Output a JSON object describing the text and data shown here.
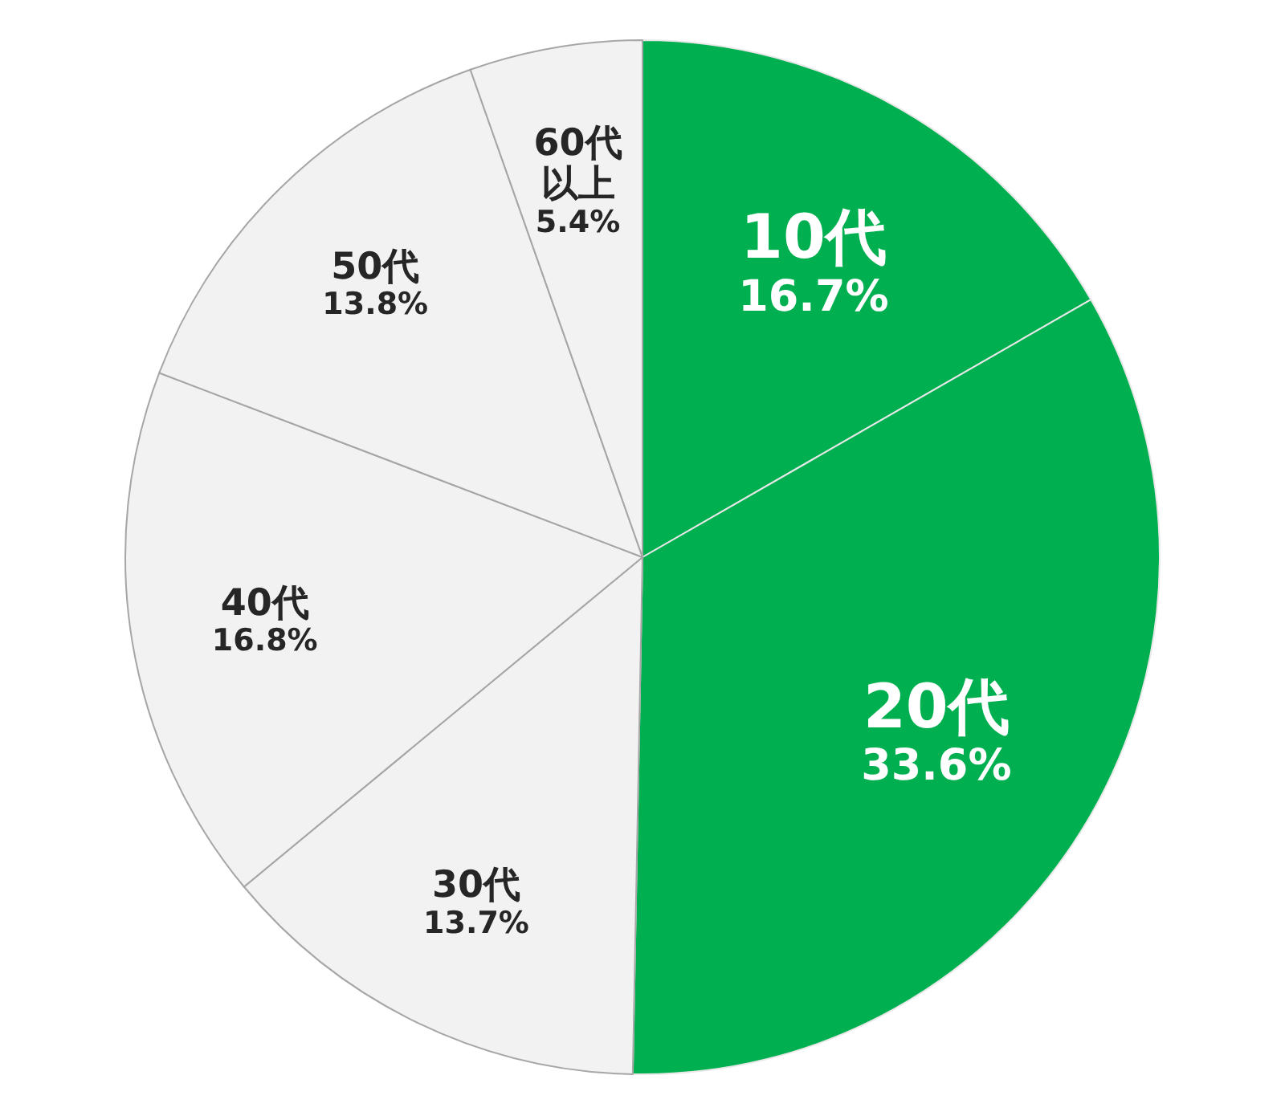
{
  "chart_data": {
    "type": "pie",
    "categories": [
      "10代",
      "20代",
      "30代",
      "40代",
      "50代",
      "60代以上"
    ],
    "values": [
      16.7,
      33.6,
      13.7,
      16.8,
      13.8,
      5.4
    ],
    "value_labels": [
      "16.7%",
      "33.6%",
      "13.7%",
      "16.8%",
      "13.8%",
      "5.4%"
    ],
    "colors": [
      "#00b050",
      "#00b050",
      "#f2f2f2",
      "#f2f2f2",
      "#f2f2f2",
      "#f2f2f2"
    ],
    "legend": false
  }
}
